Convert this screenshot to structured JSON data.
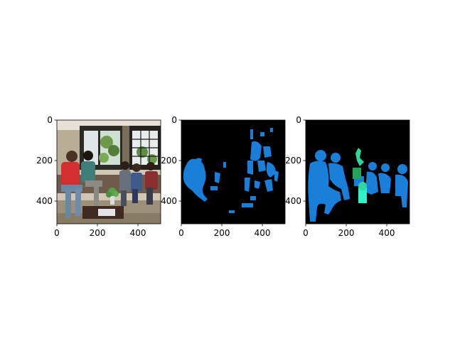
{
  "panels": [
    {
      "id": "photo",
      "kind": "photograph",
      "x_ticks": [
        0,
        200,
        400
      ],
      "y_ticks": [
        0,
        200,
        400
      ],
      "tick_labels_x": [
        "0",
        "200",
        "400"
      ],
      "tick_labels_y": [
        "0",
        "200",
        "400"
      ]
    },
    {
      "id": "prediction-mask",
      "kind": "segmentation-mask",
      "x_ticks": [
        0,
        200,
        400
      ],
      "y_ticks": [
        0,
        200,
        400
      ],
      "tick_labels_x": [
        "0",
        "200",
        "400"
      ],
      "tick_labels_y": [
        "0",
        "200",
        "400"
      ]
    },
    {
      "id": "ground-truth-mask",
      "kind": "segmentation-mask",
      "x_ticks": [
        0,
        200,
        400
      ],
      "y_ticks": [
        0,
        200,
        400
      ],
      "tick_labels_x": [
        "0",
        "200",
        "400"
      ],
      "tick_labels_y": [
        "0",
        "200",
        "400"
      ]
    }
  ],
  "image_extent": [
    0,
    512
  ],
  "colors": {
    "person": "#1a7fd9",
    "plant": "#2fd6a0",
    "chair": "#21a55a",
    "mask_bg": "#000000"
  }
}
